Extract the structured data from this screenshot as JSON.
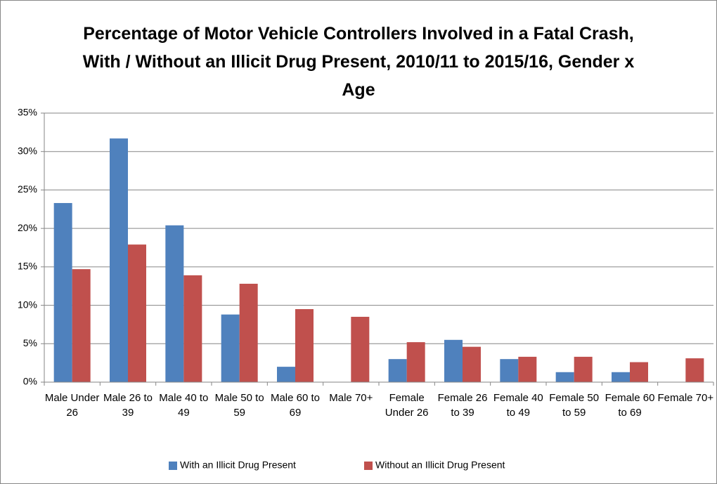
{
  "chart_data": {
    "type": "bar",
    "title": "Percentage of Motor Vehicle Controllers Involved in a Fatal Crash, With / Without an Illicit Drug Present, 2010/11 to 2015/16, Gender x Age",
    "categories": [
      "Male Under 26",
      "Male 26 to 39",
      "Male 40 to 49",
      "Male 50 to 59",
      "Male 60 to 69",
      "Male 70+",
      "Female Under 26",
      "Female 26 to 39",
      "Female 40 to 49",
      "Female 50 to 59",
      "Female 60 to 69",
      "Female 70+"
    ],
    "series": [
      {
        "name": "With an Illicit Drug Present",
        "color": "#4f81bd",
        "values": [
          23.3,
          31.7,
          20.4,
          8.8,
          2.0,
          0,
          3.0,
          5.5,
          3.0,
          1.3,
          1.3,
          0
        ]
      },
      {
        "name": "Without an Illicit Drug Present",
        "color": "#c0504d",
        "values": [
          14.7,
          17.9,
          13.9,
          12.8,
          9.5,
          8.5,
          5.2,
          4.6,
          3.3,
          3.3,
          2.6,
          3.1
        ]
      }
    ],
    "ylim": [
      0,
      35
    ],
    "yticks": [
      {
        "value": 0,
        "label": "0%"
      },
      {
        "value": 5,
        "label": "5%"
      },
      {
        "value": 10,
        "label": "10%"
      },
      {
        "value": 15,
        "label": "15%"
      },
      {
        "value": 20,
        "label": "20%"
      },
      {
        "value": 25,
        "label": "25%"
      },
      {
        "value": 30,
        "label": "30%"
      },
      {
        "value": 35,
        "label": "35%"
      }
    ],
    "grid": true,
    "legend": "bottom"
  }
}
